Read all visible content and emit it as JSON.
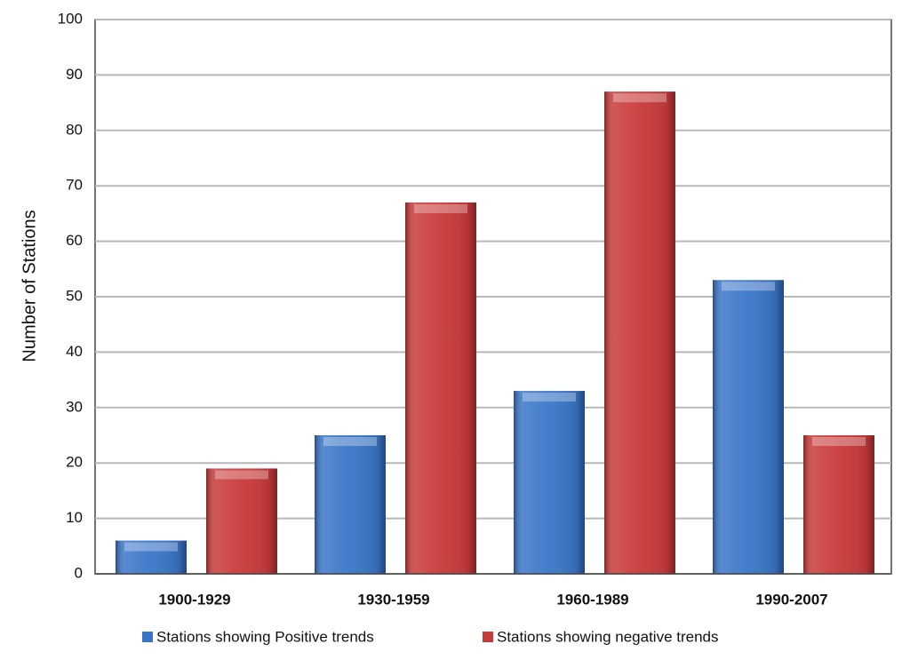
{
  "chart_data": {
    "type": "bar",
    "y_label": "Number of Stations",
    "categories": [
      "1900-1929",
      "1930-1959",
      "1960-1989",
      "1990-2007"
    ],
    "series": [
      {
        "name": "Stations showing Positive trends",
        "color": "#3a76c8",
        "values": [
          6,
          25,
          33,
          53
        ]
      },
      {
        "name": "Stations showing negative trends",
        "color": "#c93a3a",
        "values": [
          19,
          67,
          87,
          25
        ]
      }
    ],
    "ylim": [
      0,
      100
    ],
    "yticks": [
      0,
      10,
      20,
      30,
      40,
      50,
      60,
      70,
      80,
      90,
      100
    ],
    "grid": true,
    "legend": "bottom"
  }
}
